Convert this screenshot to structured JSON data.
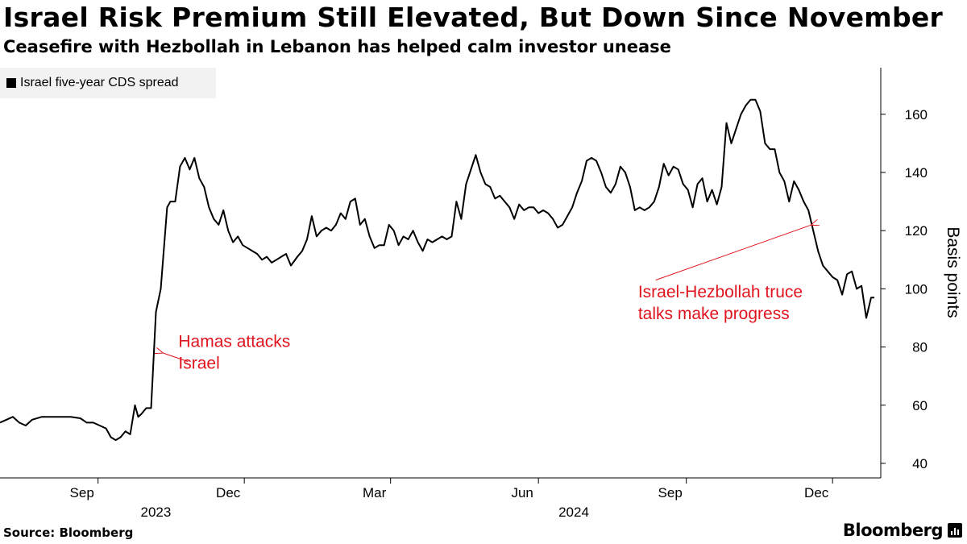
{
  "header": {
    "title": "Israel Risk Premium Still Elevated, But Down Since November",
    "subtitle": "Ceasefire with Hezbollah in Lebanon has helped calm investor unease"
  },
  "footer": {
    "source": "Source: Bloomberg",
    "brand": "Bloomberg"
  },
  "colors": {
    "line": "#000000",
    "annotation": "#e0141e",
    "legend_bg": "#f2f2f2"
  },
  "chart_data": {
    "type": "line",
    "title": "Israel Risk Premium Still Elevated, But Down Since November",
    "subtitle": "Ceasefire with Hezbollah in Lebanon has helped calm investor unease",
    "legend": [
      "Israel five-year CDS spread"
    ],
    "legend_position": "top-left",
    "ylabel": "Basis points",
    "ylim": [
      35,
      176
    ],
    "yticks": [
      40,
      60,
      80,
      100,
      120,
      140,
      160
    ],
    "xlim": [
      "2023-07-02",
      "2024-12-31"
    ],
    "x_ticks": [
      {
        "date": "2023-09-01",
        "label": "Sep"
      },
      {
        "date": "2023-12-01",
        "label": "Dec"
      },
      {
        "date": "2024-03-01",
        "label": "Mar"
      },
      {
        "date": "2024-06-01",
        "label": "Jun"
      },
      {
        "date": "2024-09-01",
        "label": "Sep"
      },
      {
        "date": "2024-12-01",
        "label": "Dec"
      }
    ],
    "year_labels": [
      {
        "date": "2023-10-15",
        "label": "2023"
      },
      {
        "date": "2024-07-01",
        "label": "2024"
      }
    ],
    "grid": false,
    "series": [
      {
        "name": "Israel five-year CDS spread",
        "points": [
          [
            "2023-07-02",
            54
          ],
          [
            "2023-07-06",
            55
          ],
          [
            "2023-07-10",
            56
          ],
          [
            "2023-07-14",
            54
          ],
          [
            "2023-07-18",
            53
          ],
          [
            "2023-07-22",
            55
          ],
          [
            "2023-07-28",
            56
          ],
          [
            "2023-08-03",
            56
          ],
          [
            "2023-08-09",
            56
          ],
          [
            "2023-08-15",
            56
          ],
          [
            "2023-08-21",
            55.5
          ],
          [
            "2023-08-25",
            54
          ],
          [
            "2023-08-29",
            54
          ],
          [
            "2023-09-02",
            53
          ],
          [
            "2023-09-06",
            52
          ],
          [
            "2023-09-09",
            49
          ],
          [
            "2023-09-12",
            48
          ],
          [
            "2023-09-15",
            49
          ],
          [
            "2023-09-18",
            51
          ],
          [
            "2023-09-21",
            50
          ],
          [
            "2023-09-24",
            60
          ],
          [
            "2023-09-26",
            56
          ],
          [
            "2023-09-28",
            57
          ],
          [
            "2023-10-01",
            59
          ],
          [
            "2023-10-04",
            59
          ],
          [
            "2023-10-07",
            92
          ],
          [
            "2023-10-10",
            100
          ],
          [
            "2023-10-14",
            128
          ],
          [
            "2023-10-16",
            130
          ],
          [
            "2023-10-19",
            130
          ],
          [
            "2023-10-22",
            142
          ],
          [
            "2023-10-25",
            145
          ],
          [
            "2023-10-28",
            141
          ],
          [
            "2023-10-31",
            145
          ],
          [
            "2023-11-03",
            138
          ],
          [
            "2023-11-06",
            135
          ],
          [
            "2023-11-09",
            128
          ],
          [
            "2023-11-12",
            124
          ],
          [
            "2023-11-15",
            122
          ],
          [
            "2023-11-18",
            127
          ],
          [
            "2023-11-21",
            120
          ],
          [
            "2023-11-24",
            116
          ],
          [
            "2023-11-27",
            118
          ],
          [
            "2023-11-30",
            115
          ],
          [
            "2023-12-03",
            114
          ],
          [
            "2023-12-06",
            113
          ],
          [
            "2023-12-09",
            112
          ],
          [
            "2023-12-12",
            110
          ],
          [
            "2023-12-15",
            111
          ],
          [
            "2023-12-18",
            109
          ],
          [
            "2023-12-21",
            110
          ],
          [
            "2023-12-24",
            111
          ],
          [
            "2023-12-27",
            112
          ],
          [
            "2023-12-30",
            108
          ],
          [
            "2024-01-03",
            111
          ],
          [
            "2024-01-06",
            113
          ],
          [
            "2024-01-09",
            117
          ],
          [
            "2024-01-12",
            125
          ],
          [
            "2024-01-15",
            118
          ],
          [
            "2024-01-18",
            120
          ],
          [
            "2024-01-21",
            121
          ],
          [
            "2024-01-24",
            120
          ],
          [
            "2024-01-27",
            122
          ],
          [
            "2024-01-30",
            126
          ],
          [
            "2024-02-02",
            124
          ],
          [
            "2024-02-05",
            130
          ],
          [
            "2024-02-08",
            131
          ],
          [
            "2024-02-11",
            122
          ],
          [
            "2024-02-14",
            124
          ],
          [
            "2024-02-17",
            118
          ],
          [
            "2024-02-20",
            114
          ],
          [
            "2024-02-23",
            115
          ],
          [
            "2024-02-26",
            115
          ],
          [
            "2024-02-29",
            122
          ],
          [
            "2024-03-03",
            120
          ],
          [
            "2024-03-06",
            115
          ],
          [
            "2024-03-09",
            118
          ],
          [
            "2024-03-12",
            117
          ],
          [
            "2024-03-15",
            120
          ],
          [
            "2024-03-18",
            116
          ],
          [
            "2024-03-21",
            113
          ],
          [
            "2024-03-24",
            117
          ],
          [
            "2024-03-27",
            116
          ],
          [
            "2024-03-30",
            117
          ],
          [
            "2024-04-02",
            118
          ],
          [
            "2024-04-05",
            117
          ],
          [
            "2024-04-08",
            118
          ],
          [
            "2024-04-11",
            130
          ],
          [
            "2024-04-14",
            124
          ],
          [
            "2024-04-17",
            136
          ],
          [
            "2024-04-20",
            141
          ],
          [
            "2024-04-23",
            146
          ],
          [
            "2024-04-26",
            140
          ],
          [
            "2024-04-29",
            136
          ],
          [
            "2024-05-02",
            135
          ],
          [
            "2024-05-05",
            131
          ],
          [
            "2024-05-08",
            132
          ],
          [
            "2024-05-11",
            130
          ],
          [
            "2024-05-14",
            128
          ],
          [
            "2024-05-17",
            124
          ],
          [
            "2024-05-20",
            129
          ],
          [
            "2024-05-23",
            127
          ],
          [
            "2024-05-26",
            128
          ],
          [
            "2024-05-29",
            128
          ],
          [
            "2024-06-01",
            126
          ],
          [
            "2024-06-04",
            127
          ],
          [
            "2024-06-07",
            126
          ],
          [
            "2024-06-10",
            124
          ],
          [
            "2024-06-13",
            121
          ],
          [
            "2024-06-16",
            122
          ],
          [
            "2024-06-19",
            125
          ],
          [
            "2024-06-22",
            128
          ],
          [
            "2024-06-25",
            133
          ],
          [
            "2024-06-28",
            137
          ],
          [
            "2024-07-01",
            144
          ],
          [
            "2024-07-04",
            145
          ],
          [
            "2024-07-07",
            144
          ],
          [
            "2024-07-10",
            140
          ],
          [
            "2024-07-13",
            135
          ],
          [
            "2024-07-16",
            133
          ],
          [
            "2024-07-19",
            136
          ],
          [
            "2024-07-22",
            142
          ],
          [
            "2024-07-25",
            140
          ],
          [
            "2024-07-28",
            135
          ],
          [
            "2024-07-31",
            127
          ],
          [
            "2024-08-03",
            128
          ],
          [
            "2024-08-06",
            127
          ],
          [
            "2024-08-09",
            128
          ],
          [
            "2024-08-12",
            130
          ],
          [
            "2024-08-15",
            135
          ],
          [
            "2024-08-18",
            143
          ],
          [
            "2024-08-21",
            139
          ],
          [
            "2024-08-24",
            142
          ],
          [
            "2024-08-27",
            141
          ],
          [
            "2024-08-30",
            136
          ],
          [
            "2024-09-02",
            134
          ],
          [
            "2024-09-05",
            128
          ],
          [
            "2024-09-08",
            136
          ],
          [
            "2024-09-11",
            138
          ],
          [
            "2024-09-14",
            130
          ],
          [
            "2024-09-17",
            134
          ],
          [
            "2024-09-20",
            129
          ],
          [
            "2024-09-23",
            135
          ],
          [
            "2024-09-26",
            157
          ],
          [
            "2024-09-29",
            150
          ],
          [
            "2024-10-02",
            155
          ],
          [
            "2024-10-05",
            160
          ],
          [
            "2024-10-08",
            163
          ],
          [
            "2024-10-11",
            165
          ],
          [
            "2024-10-14",
            165
          ],
          [
            "2024-10-17",
            161
          ],
          [
            "2024-10-20",
            150
          ],
          [
            "2024-10-23",
            148
          ],
          [
            "2024-10-26",
            148
          ],
          [
            "2024-10-29",
            140
          ],
          [
            "2024-11-01",
            137
          ],
          [
            "2024-11-04",
            130
          ],
          [
            "2024-11-07",
            137
          ],
          [
            "2024-11-10",
            134
          ],
          [
            "2024-11-13",
            130
          ],
          [
            "2024-11-16",
            127
          ],
          [
            "2024-11-19",
            120
          ],
          [
            "2024-11-22",
            113
          ],
          [
            "2024-11-25",
            108
          ],
          [
            "2024-11-28",
            106
          ],
          [
            "2024-12-01",
            104
          ],
          [
            "2024-12-04",
            103
          ],
          [
            "2024-12-07",
            98
          ],
          [
            "2024-12-10",
            105
          ],
          [
            "2024-12-13",
            106
          ],
          [
            "2024-12-16",
            100
          ],
          [
            "2024-12-19",
            101
          ],
          [
            "2024-12-22",
            90
          ],
          [
            "2024-12-25",
            97
          ],
          [
            "2024-12-27",
            97
          ]
        ]
      }
    ],
    "annotations": [
      {
        "text_lines": [
          "Hamas attacks",
          "Israel"
        ],
        "text_at": [
          "2023-10-21",
          80
        ],
        "arrow_from": [
          "2023-10-27",
          75
        ],
        "arrow_to": [
          "2023-10-11",
          78
        ]
      },
      {
        "text_lines": [
          "Israel-Hezbollah truce",
          "talks make progress"
        ],
        "text_at": [
          "2024-08-02",
          97
        ],
        "arrow_from": [
          "2024-08-13",
          103
        ],
        "arrow_to": [
          "2024-11-18",
          122
        ]
      }
    ]
  }
}
